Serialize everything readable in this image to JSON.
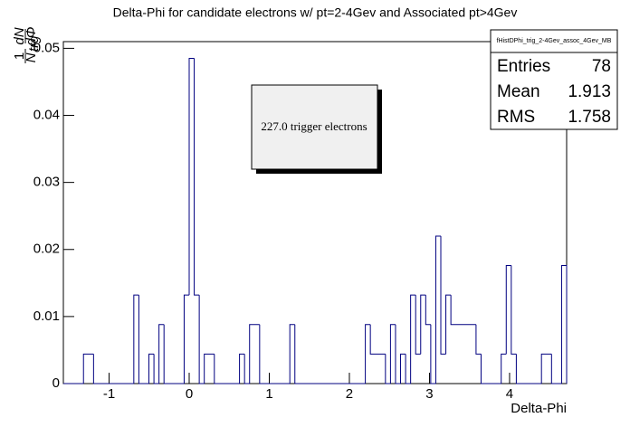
{
  "chart_data": {
    "type": "histogram",
    "title": "Delta-Phi for candidate electrons w/ pt=2-4Gev and Associated pt>4Gev",
    "x_label": "Delta-Phi",
    "y_label": {
      "numerator": "1",
      "denominator": "N",
      "denominator_subscript": "trg",
      "derivative_top": "dN",
      "derivative_bottom": "dΦ"
    },
    "annotation": "227.0 trigger electrons",
    "stats": {
      "title": "fHistDPhi_trig_2-4Gev_assoc_4Gev_MB",
      "labels": [
        "Entries",
        "Mean",
        "RMS"
      ],
      "values": [
        78,
        1.913,
        1.758
      ]
    },
    "color": "#000080",
    "bins": [
      -1.5708,
      -1.3195,
      -1.1938,
      -0.6912,
      -0.6283,
      -0.5027,
      -0.4398,
      -0.377,
      -0.3142,
      -0.0628,
      0,
      0.0628,
      0.1257,
      0.1885,
      0.3142,
      0.6283,
      0.6912,
      0.754,
      0.8796,
      1.2566,
      1.3195,
      2.1991,
      2.2619,
      2.4504,
      2.5133,
      2.5761,
      2.6389,
      2.7018,
      2.7646,
      2.8274,
      2.8903,
      2.9531,
      3.0159,
      3.0788,
      3.1416,
      3.2044,
      3.2673,
      3.5814,
      3.6442,
      3.8956,
      3.9584,
      4.0212,
      4.0841,
      4.3982,
      4.5239,
      4.6496,
      4.7124
    ],
    "values": [
      0,
      0.0044,
      0,
      0.0132,
      0,
      0.0044,
      0,
      0.0088,
      0,
      0.0132,
      0.0485,
      0.0132,
      0,
      0.0044,
      0,
      0.0044,
      0,
      0.0088,
      0,
      0.0088,
      0,
      0.0088,
      0.0044,
      0,
      0.0088,
      0,
      0.0044,
      0,
      0.0132,
      0.0044,
      0.0132,
      0.0088,
      0,
      0.022,
      0.0044,
      0.0132,
      0.0088,
      0.0044,
      0,
      0.0044,
      0.0176,
      0.0044,
      0,
      0.0044,
      0,
      0.0176
    ],
    "xlim": [
      -1.5708,
      4.7124
    ],
    "ylim": [
      0,
      0.051
    ],
    "xticks": [
      -1,
      0,
      1,
      2,
      3,
      4
    ],
    "yticks": [
      0,
      0.01,
      0.02,
      0.03,
      0.04,
      0.05
    ]
  }
}
